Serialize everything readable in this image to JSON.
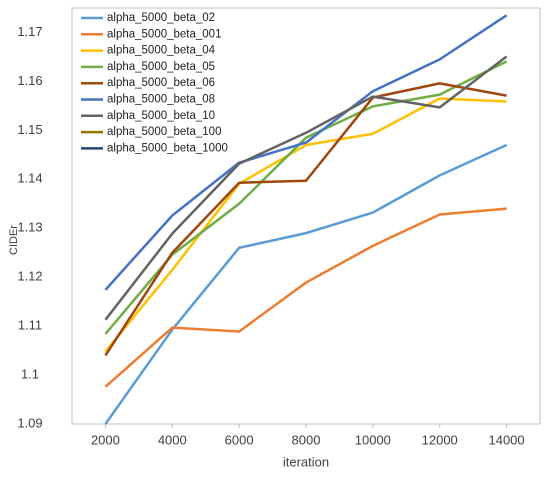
{
  "chart_data": {
    "type": "line",
    "xlabel": "iteration",
    "ylabel": "CIDEr",
    "x": [
      2000,
      4000,
      6000,
      8000,
      10000,
      12000,
      14000
    ],
    "xlim": [
      1000,
      15000
    ],
    "xticks": [
      2000,
      4000,
      6000,
      8000,
      10000,
      12000,
      14000
    ],
    "ylim": [
      1.09,
      1.175
    ],
    "yticks": [
      1.09,
      1.1,
      1.11,
      1.12,
      1.13,
      1.14,
      1.15,
      1.16,
      1.17
    ],
    "legend": "upper-left",
    "grid": false,
    "series": [
      {
        "name": "alpha_5000_beta_02",
        "color": "#5b9bd5",
        "values": [
          1.09,
          1.1093,
          1.126,
          1.129,
          1.1332,
          1.1408,
          1.147
        ]
      },
      {
        "name": "alpha_5000_beta_001",
        "color": "#ed7d31",
        "values": [
          1.0976,
          1.1097,
          1.1089,
          1.1189,
          1.1264,
          1.1328,
          1.134
        ]
      },
      {
        "name": "alpha_5000_beta_04",
        "color": "#ffc000",
        "values": [
          1.1048,
          1.1215,
          1.1391,
          1.147,
          1.1493,
          1.1565,
          1.1559
        ]
      },
      {
        "name": "alpha_5000_beta_05",
        "color": "#70ad47",
        "values": [
          1.1084,
          1.1246,
          1.135,
          1.1485,
          1.1549,
          1.1573,
          1.1641
        ]
      },
      {
        "name": "alpha_5000_beta_06",
        "color": "#9e480e",
        "values": [
          1.104,
          1.125,
          1.1393,
          1.1397,
          1.1567,
          1.1596,
          1.1571
        ]
      },
      {
        "name": "alpha_5000_beta_08",
        "color": "#4472c4",
        "values": [
          1.1174,
          1.1326,
          1.1434,
          1.1475,
          1.158,
          1.1645,
          1.1735
        ]
      },
      {
        "name": "alpha_5000_beta_10",
        "color": "#636363",
        "values": [
          1.1113,
          1.1289,
          1.1432,
          1.1495,
          1.1569,
          1.1547,
          1.1651
        ]
      },
      {
        "name": "alpha_5000_beta_100",
        "color": "#997300",
        "values": [
          null,
          null,
          null,
          null,
          null,
          null,
          null
        ]
      },
      {
        "name": "alpha_5000_beta_1000",
        "color": "#264478",
        "values": [
          null,
          null,
          null,
          null,
          null,
          null,
          null
        ]
      }
    ]
  }
}
